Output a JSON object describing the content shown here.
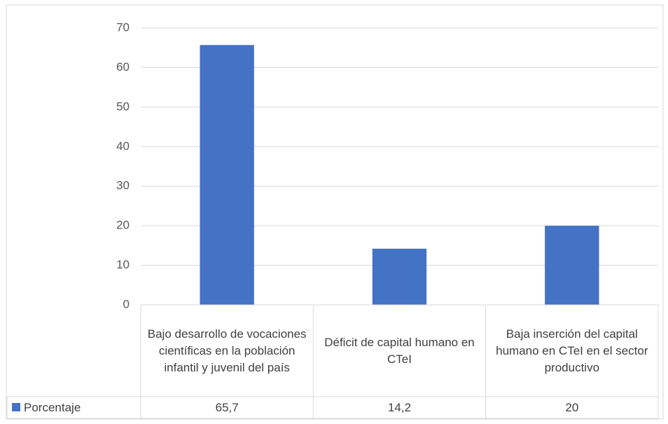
{
  "chart_data": {
    "type": "bar",
    "categories": [
      "Bajo desarrollo de vocaciones científicas en la población infantil y juvenil del país",
      "Déficit de capital humano en CTeI",
      "Baja inserción del capital humano en CTeI en el sector productivo"
    ],
    "series": [
      {
        "name": "Porcentaje",
        "color": "#4472c4",
        "values": [
          65.7,
          14.2,
          20
        ],
        "value_labels": [
          "65,7",
          "14,2",
          "20"
        ]
      }
    ],
    "ylim": [
      0,
      70
    ],
    "yticks": [
      0,
      10,
      20,
      30,
      40,
      50,
      60,
      70
    ],
    "grid": true,
    "data_table": true
  }
}
